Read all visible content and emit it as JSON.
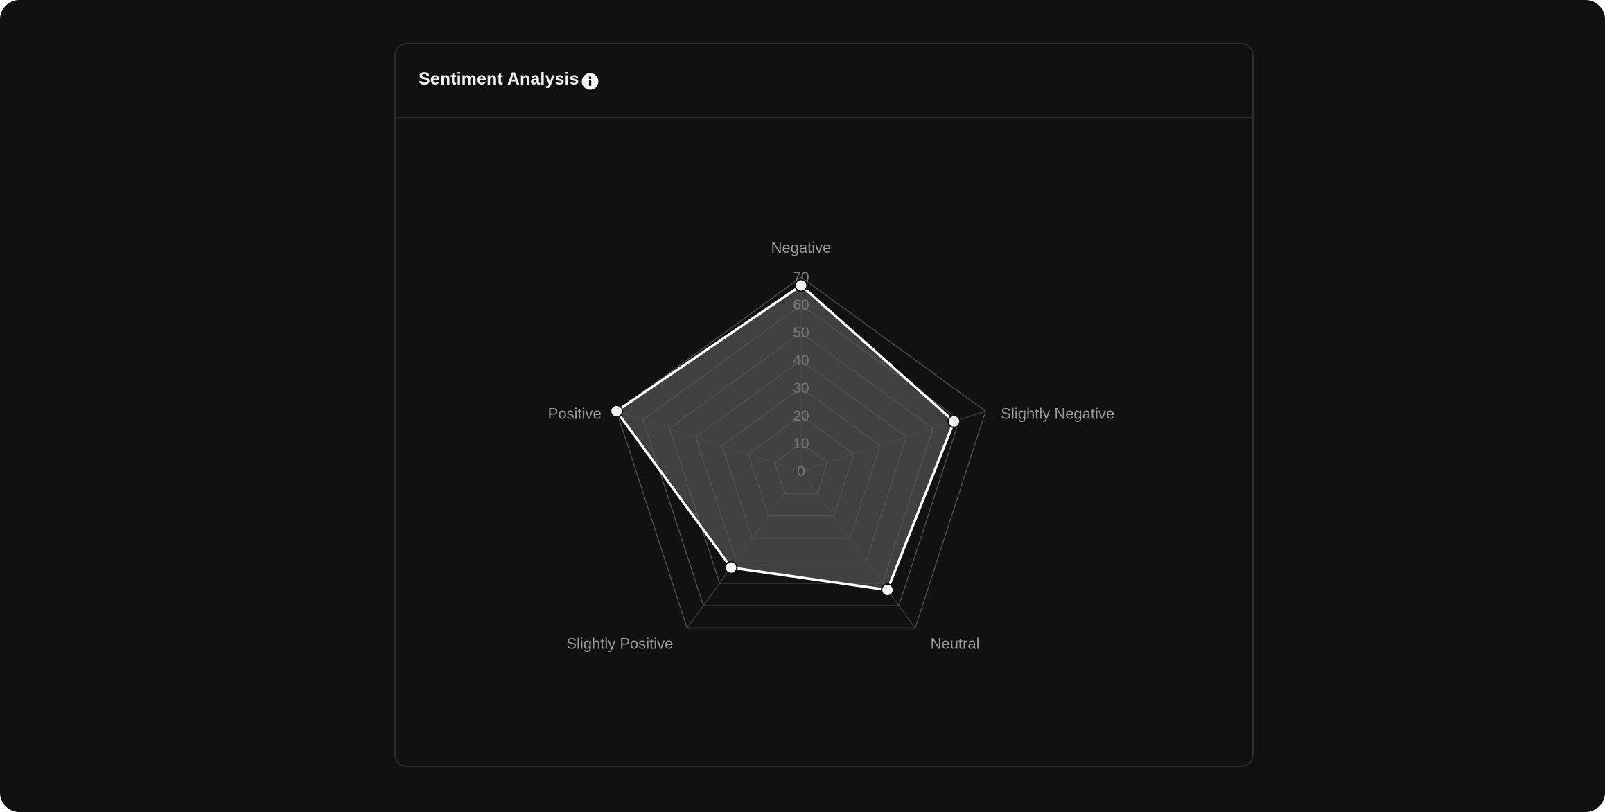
{
  "card": {
    "title": "Sentiment Analysis",
    "info_icon": "info-icon"
  },
  "colors": {
    "background": "#111111",
    "border": "#2c2c2c",
    "grid": "#3a3a3a",
    "fill": "#4a4a4a",
    "stroke": "#ffffff",
    "label": "#9a9a9a",
    "tick": "#777777"
  },
  "chart_data": {
    "type": "radar",
    "title": "Sentiment Analysis",
    "axes": [
      "Negative",
      "Slightly Negative",
      "Neutral",
      "Slightly Positive",
      "Positive"
    ],
    "ticks": [
      0,
      10,
      20,
      30,
      40,
      50,
      60,
      70
    ],
    "range": [
      0,
      70
    ],
    "series": [
      {
        "values": [
          67,
          58,
          53,
          43,
          70
        ]
      }
    ],
    "grid": true
  }
}
